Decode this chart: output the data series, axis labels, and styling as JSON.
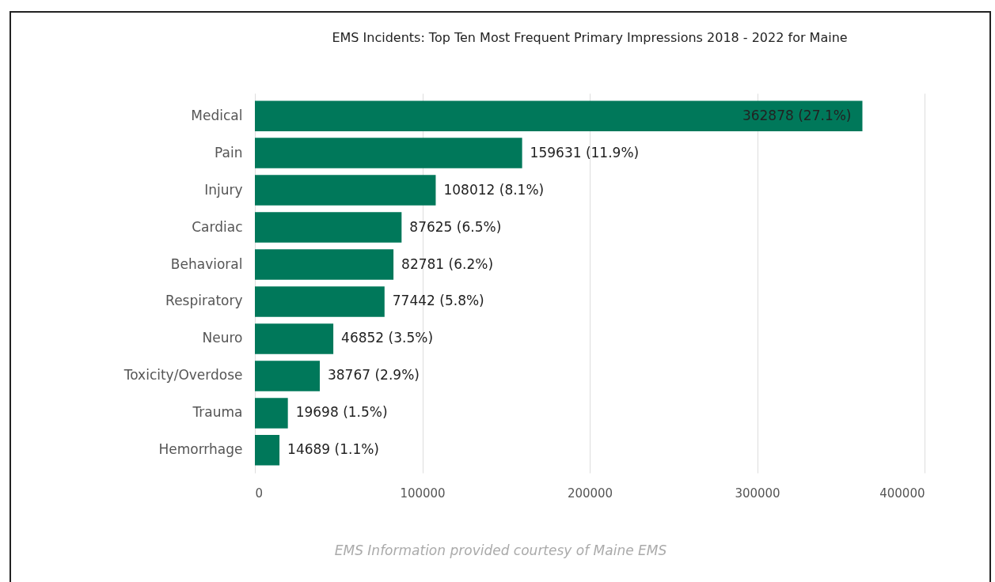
{
  "chart_data": {
    "type": "bar",
    "orientation": "horizontal",
    "title": "EMS Incidents: Top Ten Most Frequent Primary Impressions 2018 - 2022 for Maine",
    "categories": [
      "Medical",
      "Pain",
      "Injury",
      "Cardiac",
      "Behavioral",
      "Respiratory",
      "Neuro",
      "Toxicity/Overdose",
      "Trauma",
      "Hemorrhage"
    ],
    "values": [
      362878,
      159631,
      108012,
      87625,
      82781,
      77442,
      46852,
      38767,
      19698,
      14689
    ],
    "value_labels": [
      "362878 (27.1%)",
      "159631 (11.9%)",
      "108012 (8.1%)",
      "87625 (6.5%)",
      "82781 (6.2%)",
      "77442 (5.8%)",
      "46852 (3.5%)",
      "38767 (2.9%)",
      "19698 (1.5%)",
      "14689 (1.1%)"
    ],
    "color": "#00785a",
    "xlim": [
      0,
      400000
    ],
    "xticks": [
      0,
      100000,
      200000,
      300000,
      400000
    ],
    "grid": "x",
    "annotations": [
      "EMS Information provided courtesy of Maine EMS"
    ]
  }
}
